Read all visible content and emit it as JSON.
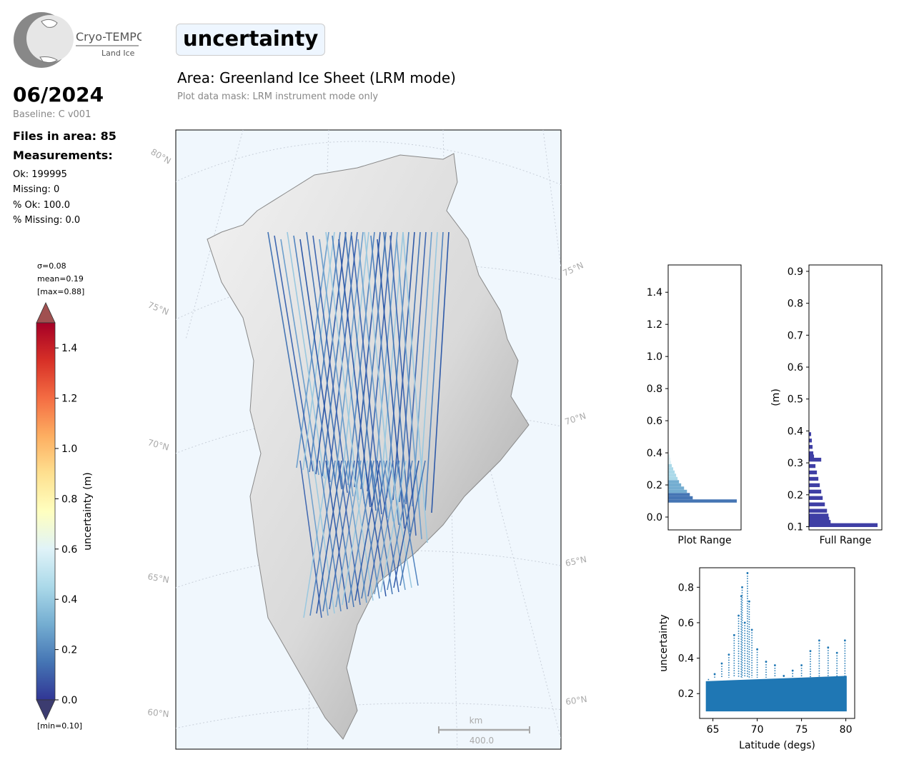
{
  "header": {
    "logo_name": "Cryo-TEMPO",
    "logo_sub": "Land Ice",
    "month": "06/2024",
    "baseline": "Baseline: C v001",
    "files_in_area": "Files in area: 85",
    "measurements_title": "Measurements:",
    "stats": [
      "Ok: 199995",
      "Missing: 0",
      "% Ok: 100.0",
      "% Missing: 0.0"
    ],
    "title": "uncertainty",
    "area": "Area: Greenland Ice Sheet (LRM mode)",
    "mask": "Plot data mask: LRM instrument mode only"
  },
  "colorbar": {
    "label": "uncertainty (m)",
    "sigma": "σ=0.08",
    "mean": "mean=0.19",
    "max": "[max=0.88]",
    "min": "[min=0.10]",
    "ticks": [
      0.0,
      0.2,
      0.4,
      0.6,
      0.8,
      1.0,
      1.2,
      1.4
    ],
    "range": [
      0.0,
      1.5
    ],
    "colors": [
      "#313695",
      "#4575b4",
      "#74add1",
      "#abd9e9",
      "#e0f3f8",
      "#ffffbf",
      "#fee090",
      "#fdae61",
      "#f46d43",
      "#d73027",
      "#a50026"
    ]
  },
  "map": {
    "lat_labels_left": [
      "80°N",
      "75°N",
      "70°N",
      "65°N",
      "60°N"
    ],
    "lat_labels_right": [
      "75°N",
      "70°N",
      "65°N",
      "60°N"
    ],
    "scale_unit": "km",
    "scale_value": "400.0",
    "ocean_color": "#f0f7fd"
  },
  "chart_data": [
    {
      "type": "bar",
      "orientation": "horizontal",
      "xlabel": "Plot Range",
      "ylim": [
        -0.08,
        1.57
      ],
      "yticks": [
        0.0,
        0.2,
        0.4,
        0.6,
        0.8,
        1.0,
        1.2,
        1.4
      ],
      "bins": [
        0.1,
        0.12,
        0.14,
        0.16,
        0.18,
        0.2,
        0.22,
        0.24,
        0.26,
        0.28,
        0.3,
        0.32,
        0.34,
        0.36,
        0.38
      ],
      "counts": [
        95,
        34,
        30,
        26,
        22,
        18,
        15,
        13,
        11,
        9,
        7,
        5,
        4,
        3,
        2
      ]
    },
    {
      "type": "bar",
      "orientation": "horizontal",
      "xlabel": "Full Range",
      "ylabel": "(m)",
      "ylim": [
        0.09,
        0.92
      ],
      "yticks": [
        0.1,
        0.2,
        0.3,
        0.4,
        0.5,
        0.6,
        0.7,
        0.8,
        0.9
      ],
      "bins": [
        0.105,
        0.115,
        0.125,
        0.135,
        0.15,
        0.17,
        0.19,
        0.21,
        0.23,
        0.25,
        0.27,
        0.29,
        0.31,
        0.32,
        0.33,
        0.35,
        0.37,
        0.39
      ],
      "counts": [
        95,
        30,
        28,
        27,
        25,
        22,
        19,
        17,
        15,
        13,
        11,
        9,
        17,
        7,
        6,
        5,
        4,
        3
      ],
      "bar_color": "#3f3fa5"
    },
    {
      "type": "scatter",
      "xlabel": "Latitude (degs)",
      "ylabel": "uncertainty",
      "xlim": [
        63.5,
        81.0
      ],
      "ylim": [
        0.06,
        0.91
      ],
      "xticks": [
        65,
        70,
        75,
        80
      ],
      "yticks": [
        0.2,
        0.4,
        0.6,
        0.8
      ],
      "color": "#1f77b4",
      "points": [
        [
          64.5,
          0.22
        ],
        [
          65.2,
          0.31
        ],
        [
          66.0,
          0.37
        ],
        [
          66.8,
          0.42
        ],
        [
          67.4,
          0.53
        ],
        [
          67.9,
          0.64
        ],
        [
          68.2,
          0.75
        ],
        [
          68.3,
          0.8
        ],
        [
          68.6,
          0.6
        ],
        [
          68.9,
          0.88
        ],
        [
          69.1,
          0.72
        ],
        [
          69.4,
          0.56
        ],
        [
          70.0,
          0.45
        ],
        [
          71.0,
          0.38
        ],
        [
          72.0,
          0.36
        ],
        [
          73.0,
          0.3
        ],
        [
          74.0,
          0.33
        ],
        [
          75.0,
          0.36
        ],
        [
          76.0,
          0.44
        ],
        [
          77.0,
          0.5
        ],
        [
          78.0,
          0.46
        ],
        [
          79.0,
          0.43
        ],
        [
          79.9,
          0.5
        ]
      ],
      "band": {
        "lower": 0.1,
        "upper_start": 0.27,
        "upper_end": 0.3
      }
    }
  ]
}
